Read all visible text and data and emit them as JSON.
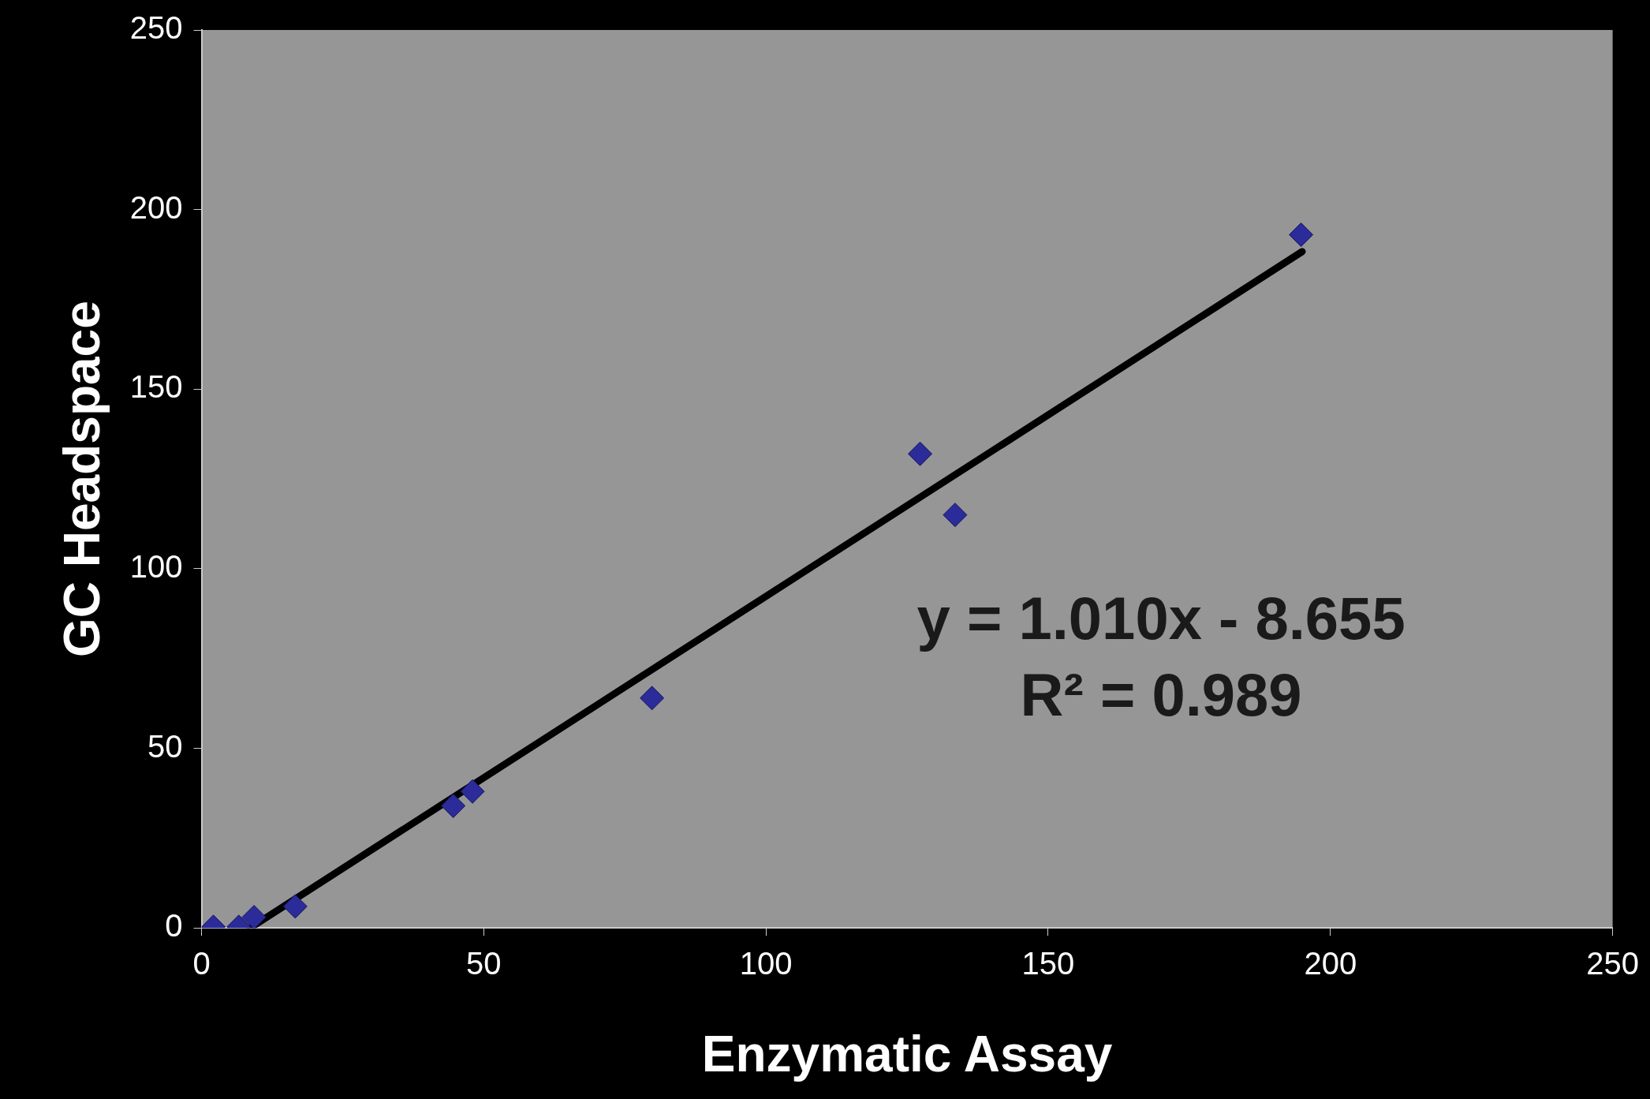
{
  "chart_data": {
    "type": "scatter",
    "xlabel": "Enzymatic Assay",
    "ylabel": "GC Headspace",
    "annotations": [
      "y = 1.010x - 8.655",
      "R² = 0.989"
    ],
    "xlim": [
      0,
      250
    ],
    "xticks": [
      0,
      50,
      100,
      150,
      200,
      250
    ],
    "ylim": [
      0,
      250
    ],
    "yticks": [
      0,
      50,
      100,
      150,
      200,
      250
    ],
    "grid": false,
    "legend": false,
    "series": [
      {
        "color": "#2b2b9a",
        "marker": "diamond",
        "x": [
          2.1,
          6.6,
          9.3,
          16.6,
          44.6,
          48,
          79.8,
          127.3,
          133.5,
          194.8
        ],
        "values": [
          0.3,
          0.3,
          3,
          6,
          34,
          38,
          64,
          132,
          115,
          193
        ]
      },
      {
        "type": "line",
        "color": "#000000",
        "marker": "none",
        "x": [
          8.6,
          195
        ],
        "values": [
          0,
          188.3
        ]
      }
    ]
  }
}
